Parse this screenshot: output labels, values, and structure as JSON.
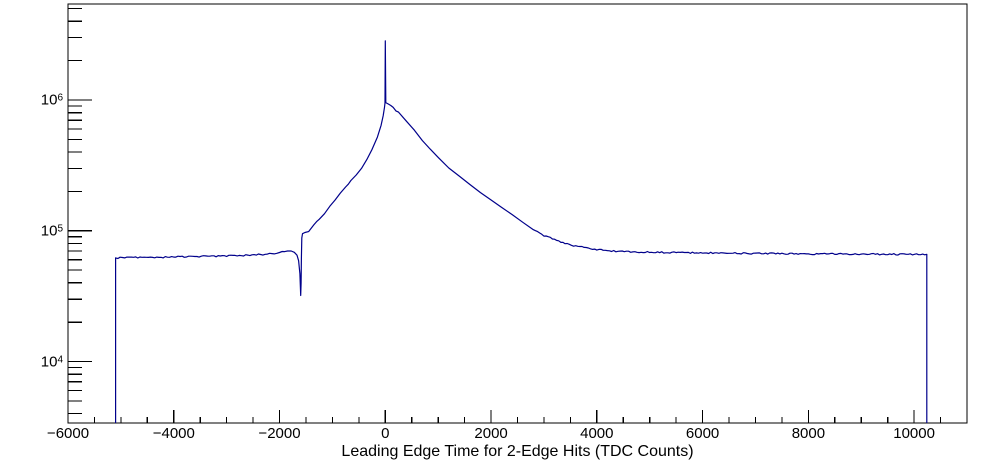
{
  "chart_data": {
    "type": "line",
    "title": "",
    "xlabel": "Leading Edge Time for 2-Edge Hits (TDC Counts)",
    "ylabel": "",
    "background_color": "#ffffff",
    "frame_color": "#000000",
    "line_color": "#00008b",
    "legend": "none",
    "grid": "off",
    "x_axis": {
      "scale": "linear",
      "min": -6000,
      "max": 11000,
      "major_tick_step": 2000,
      "minor_tick_step": 500,
      "major_ticks": [
        {
          "value": -6000,
          "label": "−6000"
        },
        {
          "value": -4000,
          "label": "−4000"
        },
        {
          "value": -2000,
          "label": "−2000"
        },
        {
          "value": 0,
          "label": "0"
        },
        {
          "value": 2000,
          "label": "2000"
        },
        {
          "value": 4000,
          "label": "4000"
        },
        {
          "value": 6000,
          "label": "6000"
        },
        {
          "value": 8000,
          "label": "8000"
        },
        {
          "value": 10000,
          "label": "10000"
        }
      ]
    },
    "y_axis": {
      "scale": "log",
      "min": 3390,
      "max": 5420000,
      "major_ticks": [
        {
          "value": 10000,
          "base": "10",
          "exp": "4"
        },
        {
          "value": 100000,
          "base": "10",
          "exp": "5"
        },
        {
          "value": 1000000,
          "base": "10",
          "exp": "6"
        }
      ]
    },
    "series": [
      {
        "name": "leading-edge-time-histogram",
        "points": [
          [
            -5100,
            3390
          ],
          [
            -5100,
            62000
          ],
          [
            -4800,
            62300
          ],
          [
            -4400,
            62700
          ],
          [
            -4000,
            63100
          ],
          [
            -3600,
            63500
          ],
          [
            -3200,
            64000
          ],
          [
            -2800,
            64600
          ],
          [
            -2400,
            65600
          ],
          [
            -2100,
            67000
          ],
          [
            -1950,
            68800
          ],
          [
            -1850,
            70500
          ],
          [
            -1780,
            70100
          ],
          [
            -1720,
            68400
          ],
          [
            -1670,
            65000
          ],
          [
            -1640,
            59000
          ],
          [
            -1615,
            47000
          ],
          [
            -1600,
            32000
          ],
          [
            -1592,
            40000
          ],
          [
            -1586,
            62000
          ],
          [
            -1578,
            88000
          ],
          [
            -1565,
            95000
          ],
          [
            -1520,
            97000
          ],
          [
            -1450,
            98500
          ],
          [
            -1350,
            111000
          ],
          [
            -1250,
            121000
          ],
          [
            -1150,
            135000
          ],
          [
            -1050,
            154000
          ],
          [
            -950,
            172000
          ],
          [
            -850,
            194000
          ],
          [
            -750,
            216000
          ],
          [
            -650,
            240000
          ],
          [
            -550,
            267000
          ],
          [
            -450,
            300000
          ],
          [
            -350,
            350000
          ],
          [
            -250,
            420000
          ],
          [
            -150,
            520000
          ],
          [
            -80,
            640000
          ],
          [
            -40,
            760000
          ],
          [
            -15,
            880000
          ],
          [
            -5,
            950000
          ],
          [
            0,
            2830000
          ],
          [
            10,
            955000
          ],
          [
            60,
            930000
          ],
          [
            150,
            868000
          ],
          [
            250,
            798000
          ],
          [
            400,
            688000
          ],
          [
            550,
            588000
          ],
          [
            700,
            490000
          ],
          [
            850,
            421000
          ],
          [
            1000,
            364000
          ],
          [
            1200,
            302000
          ],
          [
            1400,
            262000
          ],
          [
            1600,
            226000
          ],
          [
            1800,
            196000
          ],
          [
            2000,
            172000
          ],
          [
            2200,
            151000
          ],
          [
            2400,
            133000
          ],
          [
            2600,
            116000
          ],
          [
            2800,
            102000
          ],
          [
            3000,
            92000
          ],
          [
            3200,
            85500
          ],
          [
            3400,
            80000
          ],
          [
            3600,
            76500
          ],
          [
            3800,
            73800
          ],
          [
            4000,
            71800
          ],
          [
            4200,
            70400
          ],
          [
            4400,
            69400
          ],
          [
            4800,
            68700
          ],
          [
            5500,
            68200
          ],
          [
            6500,
            67500
          ],
          [
            7500,
            66900
          ],
          [
            8500,
            66400
          ],
          [
            9500,
            66100
          ],
          [
            10240,
            66000
          ],
          [
            10240,
            3390
          ]
        ]
      }
    ]
  }
}
